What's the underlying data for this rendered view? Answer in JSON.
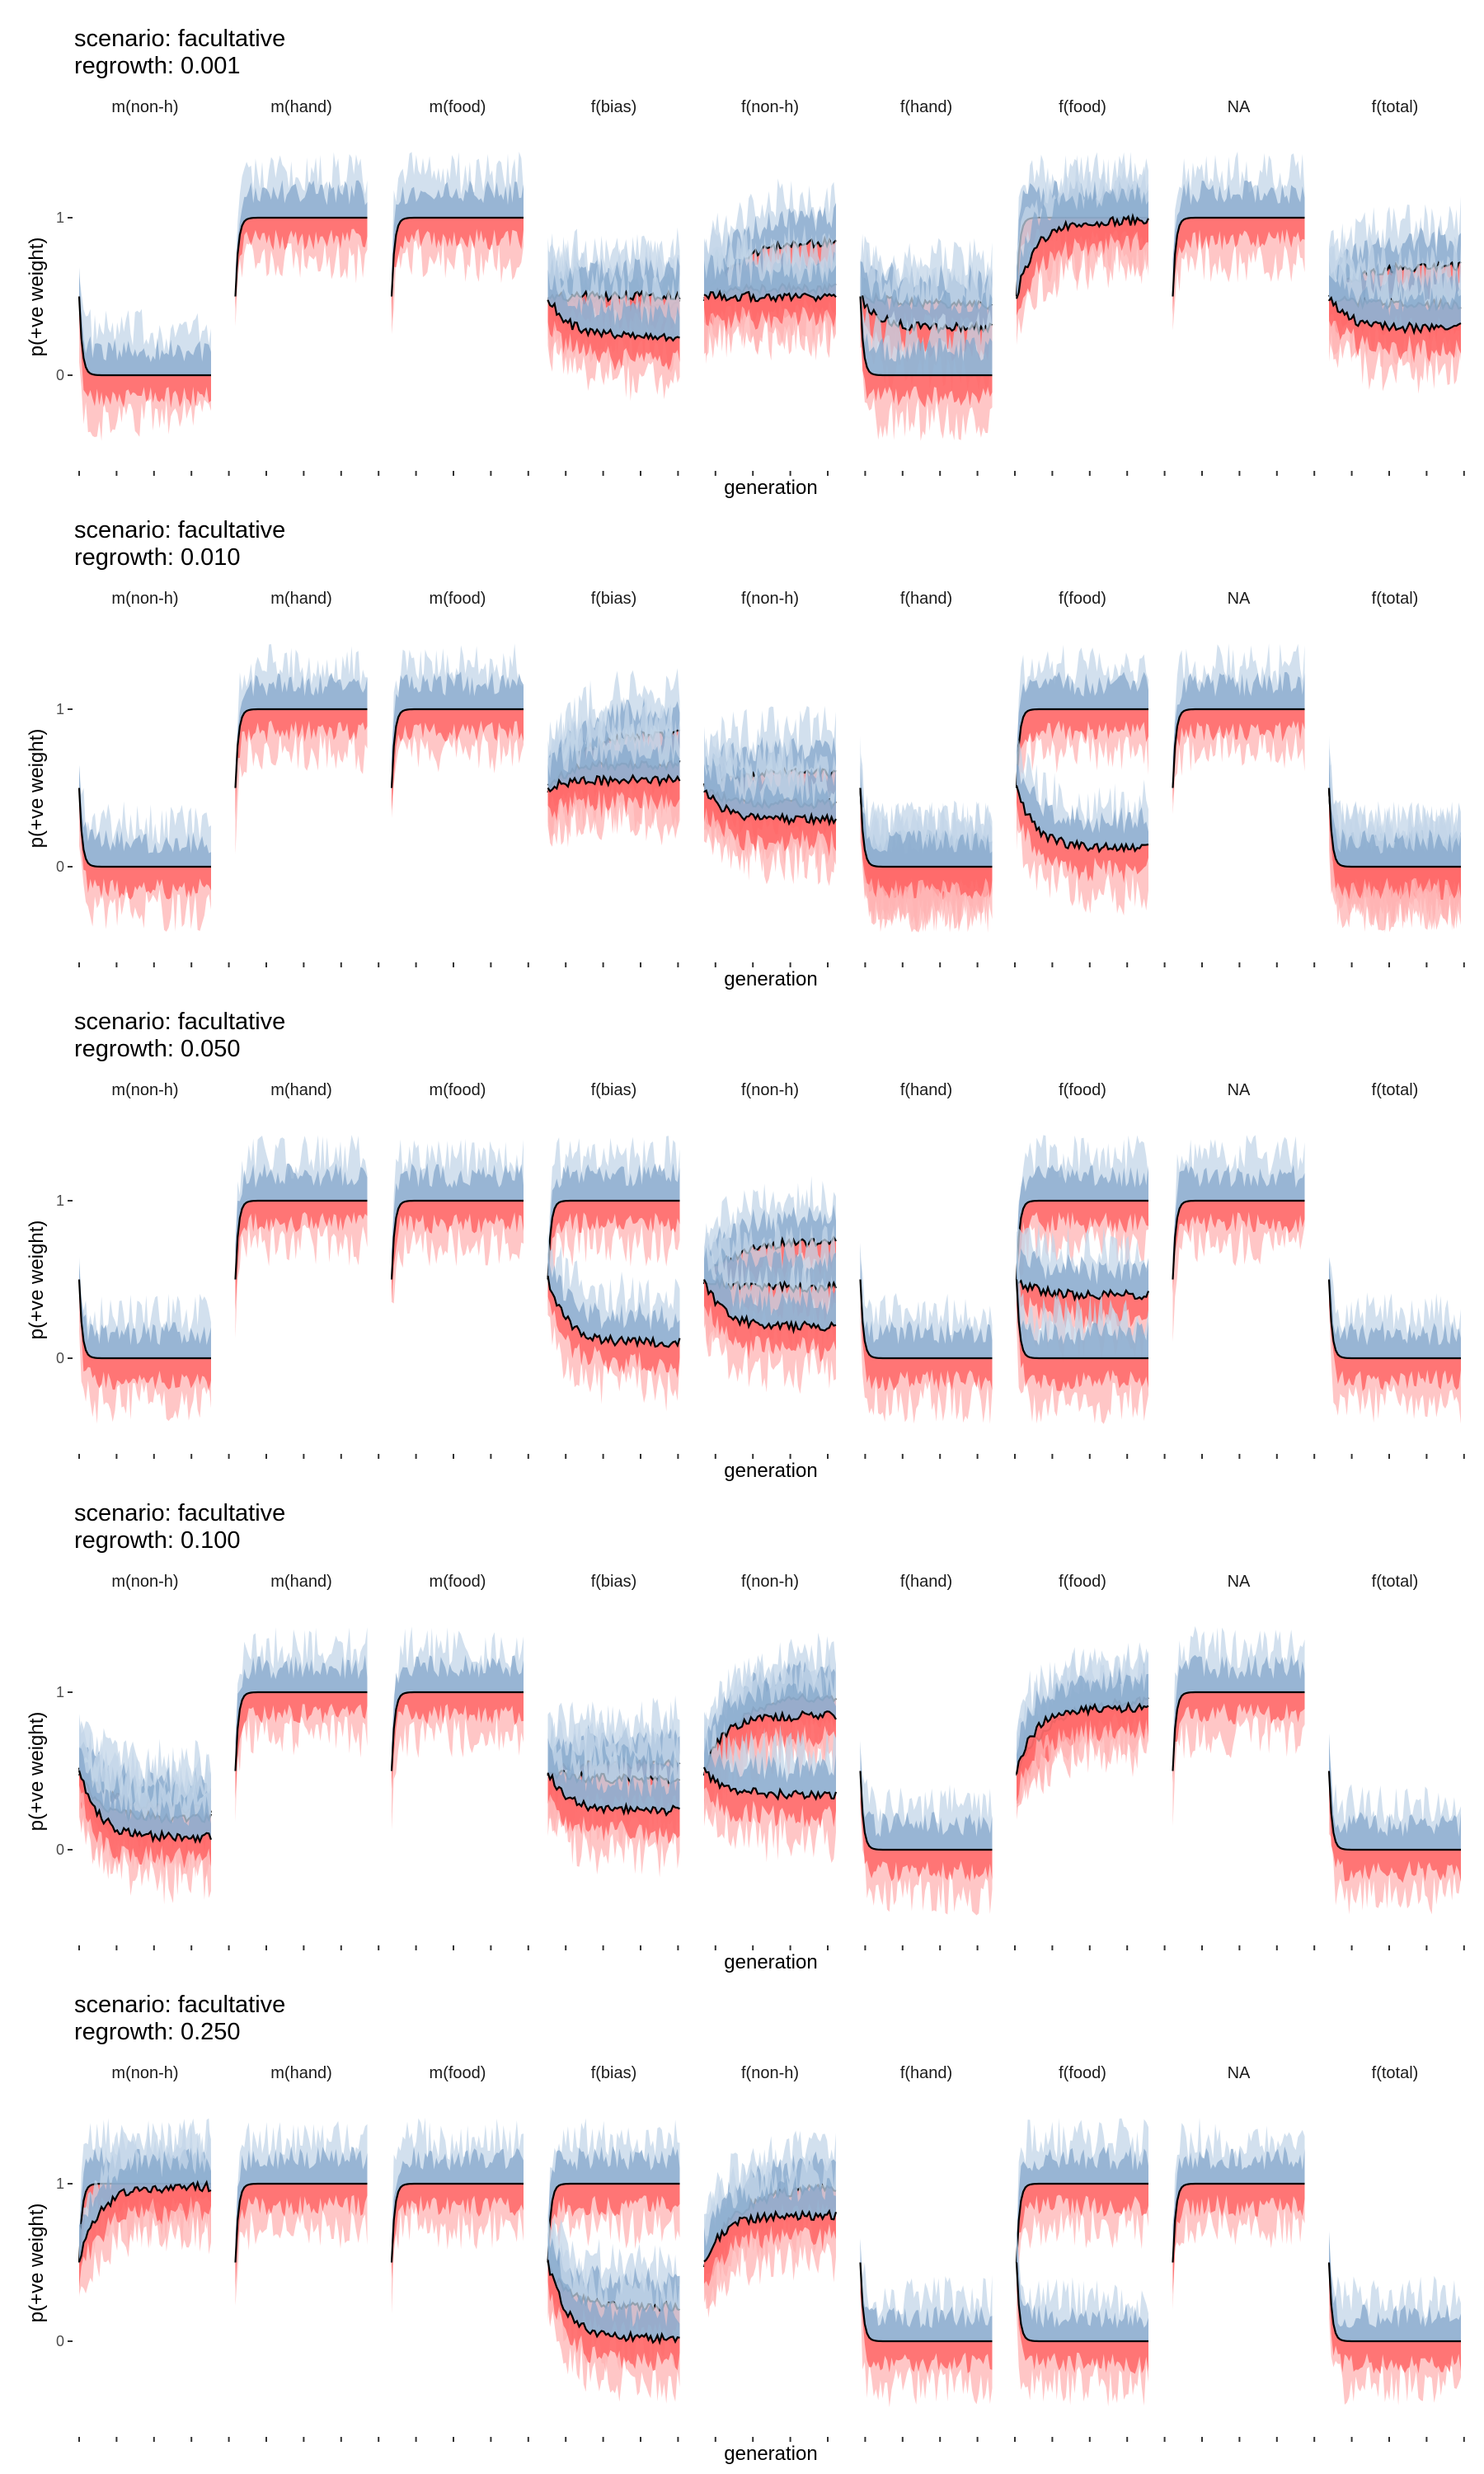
{
  "figure": {
    "xlabel": "generation",
    "ylabel": "p(+ve weight)"
  },
  "colors": {
    "pos_band_light": "#c3d5e8",
    "pos_band_dark": "#84a7cb",
    "neg_band_light": "#ffb3b3",
    "neg_band_dark": "#ff5a5a",
    "line": "#000000"
  },
  "chart_data": [
    {
      "type": "area",
      "title": "scenario: facultative\nregrowth: 0.001",
      "xlabel": "generation",
      "ylabel": "p(+ve weight)",
      "yticks": [
        0,
        1
      ],
      "facets": [
        "m(non-h)",
        "m(hand)",
        "m(food)",
        "f(bias)",
        "f(non-h)",
        "f(hand)",
        "f(food)",
        "NA",
        "f(total)"
      ],
      "series": [
        {
          "facet": "m(non-h)",
          "lines": [
            0
          ]
        },
        {
          "facet": "m(hand)",
          "lines": [
            1
          ]
        },
        {
          "facet": "m(food)",
          "lines": [
            1
          ]
        },
        {
          "facet": "f(bias)",
          "lines": [
            0.45,
            0.5,
            0.25
          ]
        },
        {
          "facet": "f(non-h)",
          "lines": [
            0.85,
            0.55,
            0.5
          ]
        },
        {
          "facet": "f(hand)",
          "lines": [
            0.45,
            0.3,
            0
          ]
        },
        {
          "facet": "f(food)",
          "lines": [
            1,
            0.98
          ]
        },
        {
          "facet": "NA",
          "lines": [
            1
          ]
        },
        {
          "facet": "f(total)",
          "lines": [
            0.7,
            0.45,
            0.3
          ]
        }
      ]
    },
    {
      "type": "area",
      "title": "scenario: facultative\nregrowth: 0.010",
      "xlabel": "generation",
      "ylabel": "p(+ve weight)",
      "yticks": [
        0,
        1
      ],
      "facets": [
        "m(non-h)",
        "m(hand)",
        "m(food)",
        "f(bias)",
        "f(non-h)",
        "f(hand)",
        "f(food)",
        "NA",
        "f(total)"
      ],
      "series": [
        {
          "facet": "m(non-h)",
          "lines": [
            0
          ]
        },
        {
          "facet": "m(hand)",
          "lines": [
            1
          ]
        },
        {
          "facet": "m(food)",
          "lines": [
            1
          ]
        },
        {
          "facet": "f(bias)",
          "lines": [
            0.85,
            0.65,
            0.55
          ]
        },
        {
          "facet": "f(non-h)",
          "lines": [
            0.6,
            0.4,
            0.3
          ]
        },
        {
          "facet": "f(hand)",
          "lines": [
            0,
            0,
            0
          ]
        },
        {
          "facet": "f(food)",
          "lines": [
            1,
            0.12
          ]
        },
        {
          "facet": "NA",
          "lines": [
            1
          ]
        },
        {
          "facet": "f(total)",
          "lines": [
            0,
            0,
            0
          ]
        }
      ]
    },
    {
      "type": "area",
      "title": "scenario: facultative\nregrowth: 0.050",
      "xlabel": "generation",
      "ylabel": "p(+ve weight)",
      "yticks": [
        0,
        1
      ],
      "facets": [
        "m(non-h)",
        "m(hand)",
        "m(food)",
        "f(bias)",
        "f(non-h)",
        "f(hand)",
        "f(food)",
        "NA",
        "f(total)"
      ],
      "series": [
        {
          "facet": "m(non-h)",
          "lines": [
            0
          ]
        },
        {
          "facet": "m(hand)",
          "lines": [
            1
          ]
        },
        {
          "facet": "m(food)",
          "lines": [
            1
          ]
        },
        {
          "facet": "f(bias)",
          "lines": [
            1,
            0.1
          ]
        },
        {
          "facet": "f(non-h)",
          "lines": [
            0.75,
            0.45,
            0.2
          ]
        },
        {
          "facet": "f(hand)",
          "lines": [
            0
          ]
        },
        {
          "facet": "f(food)",
          "lines": [
            1,
            0.4,
            0
          ]
        },
        {
          "facet": "NA",
          "lines": [
            1
          ]
        },
        {
          "facet": "f(total)",
          "lines": [
            0
          ]
        }
      ]
    },
    {
      "type": "area",
      "title": "scenario: facultative\nregrowth: 0.100",
      "xlabel": "generation",
      "ylabel": "p(+ve weight)",
      "yticks": [
        0,
        1
      ],
      "facets": [
        "m(non-h)",
        "m(hand)",
        "m(food)",
        "f(bias)",
        "f(non-h)",
        "f(hand)",
        "f(food)",
        "NA",
        "f(total)"
      ],
      "series": [
        {
          "facet": "m(non-h)",
          "lines": [
            0.25,
            0.2,
            0.08
          ]
        },
        {
          "facet": "m(hand)",
          "lines": [
            1
          ]
        },
        {
          "facet": "m(food)",
          "lines": [
            1
          ]
        },
        {
          "facet": "f(bias)",
          "lines": [
            0.55,
            0.45,
            0.25
          ]
        },
        {
          "facet": "f(non-h)",
          "lines": [
            0.98,
            0.85,
            0.35
          ]
        },
        {
          "facet": "f(hand)",
          "lines": [
            0
          ]
        },
        {
          "facet": "f(food)",
          "lines": [
            0.95,
            0.9
          ]
        },
        {
          "facet": "NA",
          "lines": [
            1
          ]
        },
        {
          "facet": "f(total)",
          "lines": [
            0
          ]
        }
      ]
    },
    {
      "type": "area",
      "title": "scenario: facultative\nregrowth: 0.250",
      "xlabel": "generation",
      "ylabel": "p(+ve weight)",
      "yticks": [
        0,
        1
      ],
      "facets": [
        "m(non-h)",
        "m(hand)",
        "m(food)",
        "f(bias)",
        "f(non-h)",
        "f(hand)",
        "f(food)",
        "NA",
        "f(total)"
      ],
      "series": [
        {
          "facet": "m(non-h)",
          "lines": [
            1,
            0.98
          ]
        },
        {
          "facet": "m(hand)",
          "lines": [
            1
          ]
        },
        {
          "facet": "m(food)",
          "lines": [
            1
          ]
        },
        {
          "facet": "f(bias)",
          "lines": [
            1,
            0.22,
            0.02
          ]
        },
        {
          "facet": "f(non-h)",
          "lines": [
            0.98,
            0.8
          ]
        },
        {
          "facet": "f(hand)",
          "lines": [
            0
          ]
        },
        {
          "facet": "f(food)",
          "lines": [
            1,
            0
          ]
        },
        {
          "facet": "NA",
          "lines": [
            1
          ]
        },
        {
          "facet": "f(total)",
          "lines": [
            0
          ]
        }
      ]
    }
  ]
}
